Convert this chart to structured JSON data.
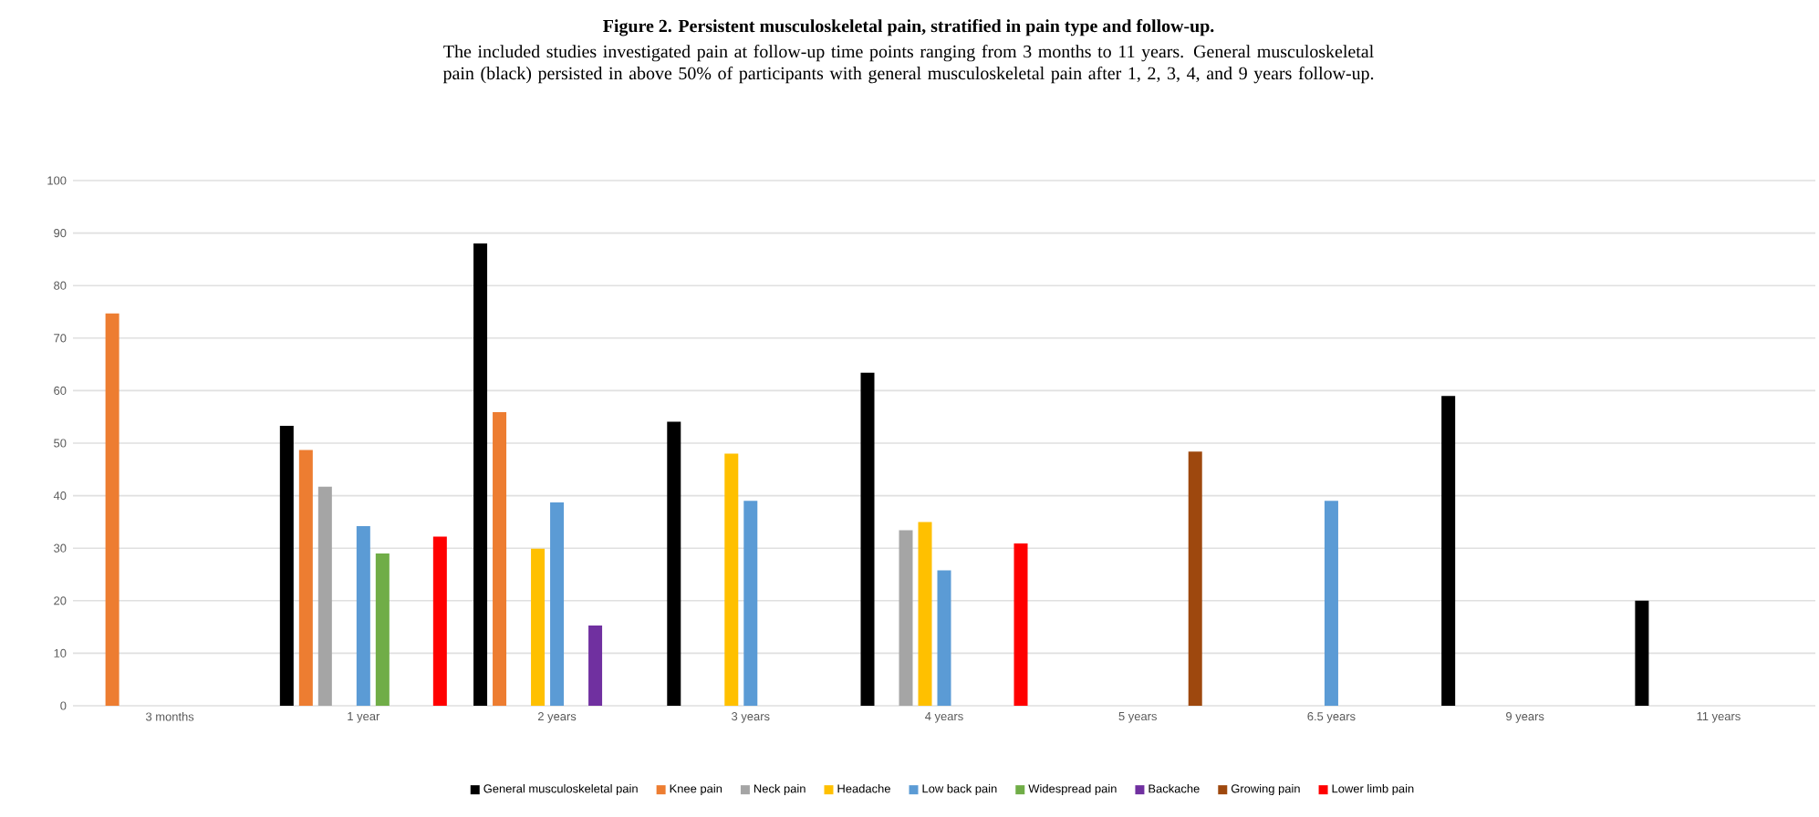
{
  "chart_data": {
    "type": "bar",
    "title": "Figure 2. Persistent musculoskeletal pain, stratified in pain type and follow-up.",
    "subtitle": "The included studies investigated pain at follow-up time points ranging from 3 months to 11 years. General musculoskeletal pain (black) persisted in above 50% of participants with general musculoskeletal pain after 1, 2, 3, 4, and 9 years follow-up.",
    "categories": [
      "3 months",
      "1 year",
      "2 years",
      "3 years",
      "4 years",
      "5 years",
      "6.5 years",
      "9 years",
      "11 years"
    ],
    "series": [
      {
        "name": "General musculoskeletal pain",
        "color": "#000000",
        "values": [
          null,
          53.3,
          88,
          54.1,
          63.4,
          null,
          null,
          59,
          20
        ]
      },
      {
        "name": "Knee pain",
        "color": "#ed7d31",
        "values": [
          74.7,
          48.7,
          55.9,
          null,
          null,
          null,
          null,
          null,
          null
        ]
      },
      {
        "name": "Neck pain",
        "color": "#a5a5a5",
        "values": [
          null,
          41.7,
          null,
          null,
          33.4,
          null,
          null,
          null,
          null
        ]
      },
      {
        "name": "Headache",
        "color": "#ffc000",
        "values": [
          null,
          null,
          29.9,
          48,
          35,
          null,
          null,
          null,
          null
        ]
      },
      {
        "name": "Low back pain",
        "color": "#5b9bd5",
        "values": [
          null,
          34.2,
          38.7,
          39,
          25.8,
          null,
          39,
          null,
          null
        ]
      },
      {
        "name": "Widespread pain",
        "color": "#70ad47",
        "values": [
          null,
          29,
          null,
          null,
          null,
          null,
          null,
          null,
          null
        ]
      },
      {
        "name": "Backache",
        "color": "#7030a0",
        "values": [
          null,
          null,
          15.3,
          null,
          null,
          null,
          null,
          null,
          null
        ]
      },
      {
        "name": "Growing pain",
        "color": "#9e480e",
        "values": [
          null,
          null,
          null,
          null,
          null,
          48.4,
          null,
          null,
          null
        ]
      },
      {
        "name": "Lower limb pain",
        "color": "#ff0000",
        "values": [
          null,
          32.2,
          null,
          null,
          30.9,
          null,
          null,
          null,
          null
        ]
      }
    ],
    "ylim": [
      0,
      100
    ],
    "yticks": [
      0,
      10,
      20,
      30,
      40,
      50,
      60,
      70,
      80,
      90,
      100
    ],
    "grid": "y",
    "legend": "bottom"
  }
}
